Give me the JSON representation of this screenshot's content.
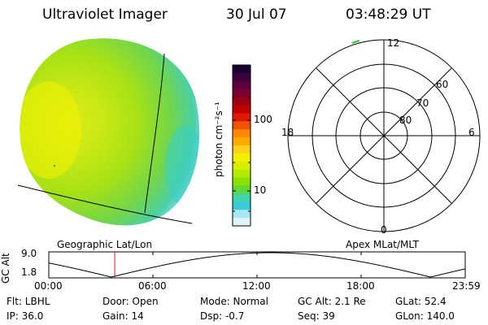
{
  "header": {
    "instrument": "Ultraviolet Imager",
    "date": "30 Jul 07",
    "time": "03:48:29 UT"
  },
  "colorbar": {
    "unit_label": "photon cm⁻²s⁻¹",
    "ticks": [
      "100",
      "10"
    ],
    "colors": [
      "#1a0033",
      "#3b003b",
      "#5a003f",
      "#7a0030",
      "#9c0012",
      "#c00000",
      "#e01a00",
      "#f25000",
      "#ff8800",
      "#ffaa00",
      "#ffd21a",
      "#f2f000",
      "#d8f000",
      "#b4ea00",
      "#8ce000",
      "#60d838",
      "#40d4a8",
      "#38ccd8",
      "#a8e8f0",
      "#e0f4f8"
    ]
  },
  "globe": {
    "label": "Geographic Lat/Lon"
  },
  "polar": {
    "label": "Apex MLat/MLT",
    "mlt_labels": {
      "top": "12",
      "right": "6",
      "bottom": "0",
      "left": "18"
    },
    "lat_labels": [
      "60",
      "70",
      "80"
    ]
  },
  "altitude_plot": {
    "ylabel": "GC Alt",
    "yticks": [
      "9.0",
      "1.8"
    ],
    "xticks": [
      "00:00",
      "06:00",
      "12:00",
      "18:00",
      "23:59"
    ],
    "cursor_hour": 3.8
  },
  "status": {
    "flt": "Flt: LBHL",
    "door": "Door: Open",
    "mode": "Mode: Normal",
    "gc_alt": "GC Alt: 2.1 Re",
    "glat": "GLat:  52.4",
    "ip": "IP: 36.0",
    "gain": "Gain: 14",
    "dsp": "Dsp:   -0.7",
    "seq": "Seq: 39",
    "glon": "GLon: 140.0"
  }
}
